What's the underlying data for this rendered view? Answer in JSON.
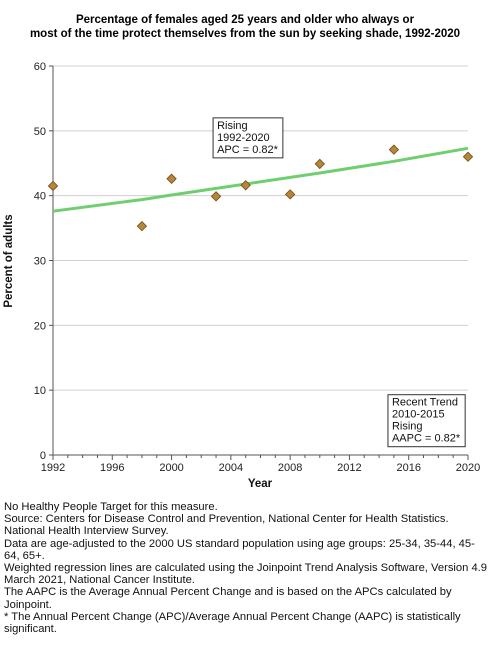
{
  "chart_data": {
    "type": "scatter",
    "title_lines": [
      "Percentage of females aged 25 years and older who always or",
      "most of the time protect themselves from the sun by seeking shade, 1992-2020"
    ],
    "xlabel": "Year",
    "ylabel": "Percent of adults",
    "xlim": [
      1992,
      2020
    ],
    "ylim": [
      0,
      60
    ],
    "x_ticks": [
      1992,
      1996,
      2000,
      2004,
      2008,
      2012,
      2016,
      2020
    ],
    "y_ticks": [
      0,
      10,
      20,
      30,
      40,
      50,
      60
    ],
    "grid": "horizontal",
    "points": [
      {
        "x": 1992,
        "y": 41.5
      },
      {
        "x": 1998,
        "y": 35.3
      },
      {
        "x": 2000,
        "y": 42.6
      },
      {
        "x": 2003,
        "y": 39.9
      },
      {
        "x": 2005,
        "y": 41.6
      },
      {
        "x": 2008,
        "y": 40.2
      },
      {
        "x": 2010,
        "y": 44.9
      },
      {
        "x": 2015,
        "y": 47.1
      },
      {
        "x": 2020,
        "y": 46.0
      }
    ],
    "trend_line": [
      {
        "x": 1992,
        "y": 37.6
      },
      {
        "x": 1998,
        "y": 39.4
      },
      {
        "x": 2000,
        "y": 40.1
      },
      {
        "x": 2010,
        "y": 43.5
      },
      {
        "x": 2015,
        "y": 45.3
      },
      {
        "x": 2020,
        "y": 47.3
      }
    ],
    "annotations": [
      {
        "lines": [
          "Rising",
          "1992-2020",
          "APC =  0.82*"
        ],
        "anchor": {
          "x": 2002.8,
          "y": 52
        }
      },
      {
        "lines": [
          "Recent Trend",
          "2010-2015",
          "Rising",
          "AAPC =  0.82*"
        ],
        "anchor": {
          "x": 2014.6,
          "y": 9.3
        }
      }
    ],
    "colors": {
      "marker_fill": "#b8863b",
      "marker_stroke": "#6e4a12",
      "trend": "#6fcf6f",
      "grid": "#d0d0d0",
      "axis": "#555555"
    }
  },
  "notes": [
    "No Healthy People Target for this measure.",
    "Source: Centers for Disease Control and Prevention, National Center for Health Statistics. National Health Interview Survey.",
    "Data are age-adjusted to the 2000 US standard population using age groups: 25-34, 35-44, 45-64, 65+.",
    "Weighted regression lines are calculated using the Joinpoint Trend Analysis Software, Version 4.9 March 2021, National Cancer Institute.",
    "The AAPC is the Average Annual Percent Change and is based on the APCs calculated by Joinpoint.",
    "* The Annual Percent Change (APC)/Average Annual Percent Change (AAPC) is statistically significant."
  ]
}
